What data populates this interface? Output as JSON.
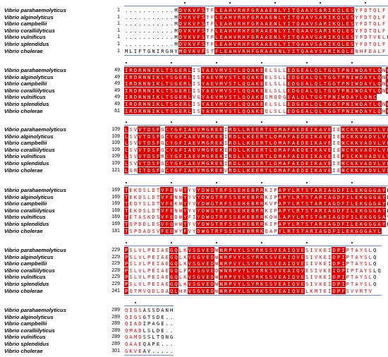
{
  "species": [
    "Vibrio parahaemolyticus",
    "Vibrio alginolyticus",
    "Vibrio campbellii",
    "Vibrio coralliilyticus",
    "Vibrio vulnificus",
    "Vibrio splendidus",
    "Vibrio cholerae"
  ],
  "colors": {
    "identical_bg": "#e00000",
    "similar_text": "#e00000",
    "frame": "#6b8ccc"
  },
  "blocks": [
    {
      "positions": [
        "1",
        "1",
        "1",
        "1",
        "1",
        "1",
        "1"
      ],
      "rows": [
        "...........MDVKVFSTFLEAHVRHFGRAAENLYITQAAVSARIKQLESYFDTQLF",
        "...........MDVKVFSTFLEAHVRHFGRAAENLYITQAAVSARIKQLESYFDTQLF",
        "...........MDVKVFSTFLEAHVRHFGRAAENLYITQAAVSARIKQLESYFDTQLF",
        "...........MDVKVFSTFLEAHVRHFGRAAENLYITQAAVSARIKQLESYFDTQLF",
        "...........MDVKVFSTFLEAHVRHFGRAAENLYITQAAVSARIKQLESYFDTVELF",
        "...........MDVKVFSTFLEAHVRHFGRAAENLYITQAAVSARIKQLESYFDTQLF",
        "MLIFTGNIRGNYMDVKVFSTFLEAHVRHFGRAAENLYITQAAVSARIKQLENHFDALF"
      ],
      "cons": "GGGGGGGGGGGGRRRRRRSSRRRRRRRRRRRRRRRRRRRRRRRRRRRRRRRSSSSSSS",
      "dots": [
        13,
        23,
        33,
        43,
        53
      ]
    },
    {
      "positions": [
        "49",
        "49",
        "49",
        "49",
        "49",
        "49",
        "61"
      ],
      "rows": [
        "IRDRNNIKLTSGERLISYAEVMVSTLQQAKEELSLLEDGEALQLTGGTPNIWDAYLQNC",
        "IRDRNNIKLTSGERLISYAEVMVSTLQQAKEELSLLEDGEALQLTGGTPNIWDAYLQNC",
        "IRDRNNIKLTSGERLISYAEVMVSTLQQAKEELSLLEDGEALQLTGGTPNIWDAYLQNC",
        "IRDRNNIKLTSGERLISYAEVMVSTLQQAKEELSLLEDGEALQLTGGTPNIWDAYLQNC",
        "IRDRNNIKLTSGERLVGYAEVMVSTLQQAKESMQDGEALQLTGGTPNIWDAYLQNC",
        "IRDRNNIKLTSGERLISYAEVMVSTLQQAKEELSLLEDGEALQLTGGTPNIWDAYLQNC",
        "IRDRNNIKLTSGERLISYAEVMVSTLQQAKEQLSLLEDGEALQLTGGTPNIWDAYLQHC"
      ],
      "cons": "RRRRRRRRRRRRRRRSSRRRRRRRRRRRRRRSSSSSRRRRRRRRRRRRRRRRRRRRRSR",
      "dots": [
        0,
        10,
        20,
        30,
        40,
        50
      ]
    },
    {
      "positions": [
        "109",
        "109",
        "109",
        "109",
        "109",
        "109",
        "121"
      ],
      "rows": [
        "LSVVTDSFGCYGFIAEVMGREKIRDLLKEERTLDMAFAEDEIKAVEIENCKKVADVLVLVS",
        "LSVVTDSFGCYGFIAEVMGREKIRDLLKEERTLDMAFAEDEIKAVEIENCKKVADVLVLVS",
        "LSVVTDSFGCYGFIAEVMGREKIRDLLKEERTLDMAFAEDEIKAVEIENCKKVADVLVLVS",
        "LSVVTDSFGCYGFIAEVMGREKIRDLLKEERTLDMAFAEDEIKAVEIENCKKVADVLVLVS",
        "LSVVTDSFRCYGFIAEVMGREKIRDLLKEERTLDMAFAEDEIKAVEIEFSCKKVADVLVLVS",
        "LSVVTDSFGCYGFIAEVMGREKIRDLLKEERTLDMAFAEDEIKAVEIENCKKVADVLVLVS",
        "LGRITDSFGCYGFIAEVMGREKVRDLLKEERTLDMAFAEDEIKAVEIENCKKVADVLVLVS"
      ],
      "cons": "RSSRRRRRSRRRRRRRRRRRRRSRRRRRRRRRRRRRRRRRRRRRRRSSRRRRRRRRRRRR",
      "dots": [
        0,
        10,
        20,
        30,
        40,
        50
      ]
    },
    {
      "positions": [
        "169",
        "169",
        "169",
        "169",
        "169",
        "169",
        "181"
      ],
      "rows": [
        "TEKDSLDTVFENWYYVYDWGTRFSSEHEBRRKIPAPYLRTSTARIAGDFILEKGGGAYL",
        "TEKDSLDTVFENWYYVYDWGTRFSSEHEBRRKIPAPYLRTSTARIAGDFILEKGGGAYL",
        "TEQYSLDTVFEKWYYVYDWGTRFSSEHEBRRKVPAPYLRTSTARIAGDFILEKGGGAYL",
        "TEKDSLDTVFENWYYVYDWGTRFSSEHEBRRKIPAPYLRTSTARIAGDFILEKGGGAYL",
        "TETASKDSVFEDWYFIYDWGTRFSSEHEBRRKQHLAPYLRTSTARIAGDFILEKGGSAYL",
        "TQPDDLESVFQHWYYVYDWGTRFSSEHEBRRKIPAPYLRTSTARIAGDFILEKGGGAYL",
        "TSPDADSVFEDWYFVYDWGTRFSSEHEBRRKQAPYLRTSTARIAGDFILEKGGGAYL"
      ],
      "cons": "RSSSSSSSRRRSSRSSRRRRRRRRRRRRRRRSSSRRRRRRRRRRRRRRRRRRRRRRRR",
      "dots": [
        0,
        10,
        20,
        30,
        40,
        50
      ]
    },
    {
      "positions": [
        "229",
        "229",
        "229",
        "229",
        "229",
        "229",
        "241"
      ],
      "rows": [
        "PSLVLPEIAEGQLKVSGVEDWNRPVYLSYRKSSVEAIQVESIVKEIDPIPTAYSLQ",
        "PSLVLPEIAEGQLKVSGVEDWNRPVYLSYRKSSVEAIQVESIVKEIDPIPTAYSLQ",
        "PSLVLPEIAEGQLKVSGVEDWNRPVYLSYRKSSVEAIQVESIVKEIDPIPTAYSLQ",
        "PSLVLPEIAEGQLFKVSGVEDWNRPVYLSYRKSSVEAIQVESIVKEIDPIPTAYSLQ",
        "PSLVLPEIAEGQLKVSGVEDWHRPVYLSYRKSSVEAIQVESIVKEIDPIPTAYSLQ",
        "PSLVLPEIAEGQLKVSGVEDWNRPVYLSYRKSSVEAIQVESIVKEIDPIPTAYSLQ",
        "PQTMVQDLDAQLHRVSGVEDWNRPVYLSYRKSSVEAIQVELKMTEIDPFSVVRTV"
      ],
      "cons": "RSSSSSSSSSRRSSRRRRRRSRRRRRRRRRRRRRRRRRRRSSSSSSRRRSSSSSS",
      "dots": [
        0,
        10,
        20,
        30,
        40,
        50
      ]
    },
    {
      "positions": [
        "289",
        "289",
        "289",
        "289",
        "289",
        "289",
        "301"
      ],
      "rows": [
        "QIGSASSDANH",
        "QIGSGTSDE..",
        "QIADIPAGE..",
        "QMADLSLDE..",
        "QAMDSSLTQNG",
        "QAAEQAPE...",
        "GKVEAV....."
      ],
      "cons": "SSSSNNNNNNN",
      "dots": [
        2
      ]
    }
  ]
}
